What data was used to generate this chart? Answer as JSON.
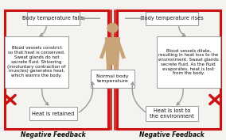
{
  "bg_color": "#f5f3ef",
  "figure_bg": "#f5f3ef",
  "title_left": "Negative Feedback",
  "title_right": "Negative Feedback",
  "center_label": "Normal body\ntemperature",
  "top_left_box": "Body temperature falls",
  "top_right_box": "Body temperature rises",
  "left_box_text": "Blood vessels constrict\nso that heat is conserved.\nSweat glands do not\nsecrete fluid. Shivering\n(involuntary contraction of\nmuscles) generates heat,\nwhich warms the body.",
  "right_box_text": "Blood vessels dilate,\nresulting in heat loss to the\nenvironment. Sweat glands\nsecrete fluid. As the fluid\nevaporates, heat is lost\nfrom the body.",
  "bottom_left_box": "Heat is retained",
  "bottom_right_box": "Heat is lost to\nthe environment",
  "red_color": "#cc1111",
  "box_face_color": "#ffffff",
  "box_edge_color": "#999999",
  "arrow_color": "#999999",
  "text_color": "#111111",
  "body_color": "#c8a478",
  "x_color": "#cc1111",
  "label_color": "#111111"
}
